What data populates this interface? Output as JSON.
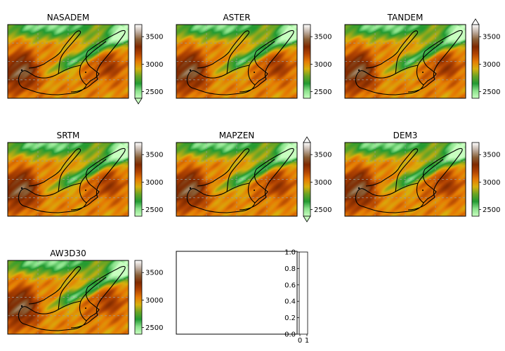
{
  "colormap": [
    "#c8ffc0",
    "#8ce28c",
    "#229a32",
    "#6aa424",
    "#d8b00c",
    "#e57a04",
    "#b24402",
    "#802a00",
    "#8a6038",
    "#c0b0a4",
    "#ffffff"
  ],
  "chart_data": [
    {
      "type": "heatmap",
      "title": "NASADEM",
      "colorbar": {
        "vmin": 2380,
        "vmax": 3720,
        "ticks": [
          2500,
          3000,
          3500
        ],
        "extend": "min"
      },
      "x_grid_lines": 3,
      "y_grid_lines": 3,
      "grid": "dashed",
      "legend": "none"
    },
    {
      "type": "heatmap",
      "title": "ASTER",
      "colorbar": {
        "vmin": 2380,
        "vmax": 3720,
        "ticks": [
          2500,
          3000,
          3500
        ],
        "extend": "none"
      },
      "x_grid_lines": 3,
      "y_grid_lines": 3,
      "grid": "dashed",
      "legend": "none"
    },
    {
      "type": "heatmap",
      "title": "TANDEM",
      "colorbar": {
        "vmin": 2380,
        "vmax": 3720,
        "ticks": [
          2500,
          3000,
          3500
        ],
        "extend": "max"
      },
      "x_grid_lines": 3,
      "y_grid_lines": 3,
      "grid": "dashed",
      "legend": "none"
    },
    {
      "type": "heatmap",
      "title": "SRTM",
      "colorbar": {
        "vmin": 2380,
        "vmax": 3720,
        "ticks": [
          2500,
          3000,
          3500
        ],
        "extend": "none"
      },
      "x_grid_lines": 3,
      "y_grid_lines": 3,
      "grid": "dashed",
      "legend": "none"
    },
    {
      "type": "heatmap",
      "title": "MAPZEN",
      "colorbar": {
        "vmin": 2380,
        "vmax": 3720,
        "ticks": [
          2500,
          3000,
          3500
        ],
        "extend": "both"
      },
      "x_grid_lines": 3,
      "y_grid_lines": 3,
      "grid": "dashed",
      "legend": "none"
    },
    {
      "type": "heatmap",
      "title": "DEM3",
      "colorbar": {
        "vmin": 2380,
        "vmax": 3720,
        "ticks": [
          2500,
          3000,
          3500
        ],
        "extend": "none"
      },
      "x_grid_lines": 3,
      "y_grid_lines": 3,
      "grid": "dashed",
      "legend": "none"
    },
    {
      "type": "heatmap",
      "title": "AW3D30",
      "colorbar": {
        "vmin": 2380,
        "vmax": 3720,
        "ticks": [
          2500,
          3000,
          3500
        ],
        "extend": "none"
      },
      "x_grid_lines": 3,
      "y_grid_lines": 3,
      "grid": "dashed",
      "legend": "none"
    },
    {
      "type": "scatter",
      "title": "",
      "empty": true,
      "colorbar": {
        "vmin": 0,
        "vmax": 1,
        "ticks": [
          0.0,
          0.2,
          0.4,
          0.6,
          0.8,
          1.0
        ],
        "tick_labels": [
          "0.0",
          "0.2",
          "0.4",
          "0.6",
          "0.8",
          "1.0"
        ],
        "x_tick_labels": [
          "0",
          "1"
        ]
      }
    }
  ]
}
